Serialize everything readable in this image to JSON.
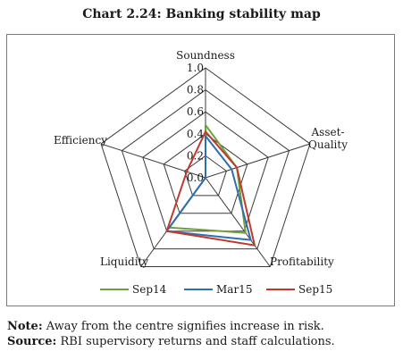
{
  "title": "Chart 2.24: Banking stability map",
  "chart_data": {
    "type": "radar",
    "axes": [
      "Soundness",
      "Asset-Quality",
      "Profitability",
      "Liquidity",
      "Efficiency"
    ],
    "axis_label_lines": [
      [
        "Soundness"
      ],
      [
        "Asset-",
        "Quality"
      ],
      [
        "Profitability"
      ],
      [
        "Liquidity"
      ],
      [
        "Efficiency"
      ]
    ],
    "rmin": 0,
    "rmax": 1.0,
    "tick_labels": [
      "0.0",
      "0.2",
      "0.4",
      "0.6",
      "0.8",
      "1.0"
    ],
    "grid": true,
    "legend_position": "bottom",
    "series": [
      {
        "name": "Sep14",
        "color": "#70a03c",
        "values": [
          0.48,
          0.3,
          0.62,
          0.56,
          0.0
        ]
      },
      {
        "name": "Mar15",
        "color": "#2e6fb0",
        "values": [
          0.38,
          0.25,
          0.7,
          0.6,
          0.0
        ]
      },
      {
        "name": "Sep15",
        "color": "#c0392b",
        "values": [
          0.42,
          0.3,
          0.76,
          0.6,
          0.18
        ]
      }
    ]
  },
  "notes": {
    "note_label": "Note:",
    "note_text": " Away from the centre signifies increase in risk.",
    "source_label": "Source:",
    "source_text": " RBI supervisory returns and staff calculations."
  }
}
